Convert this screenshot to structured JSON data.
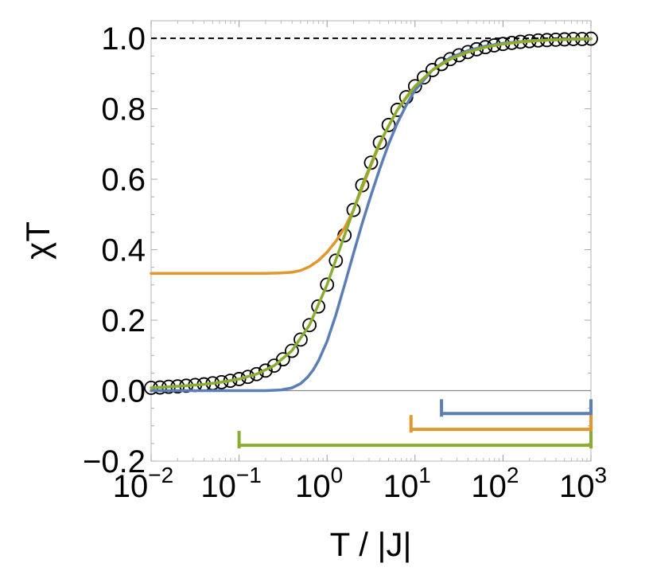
{
  "chart_data": {
    "type": "line",
    "xlabel": "T / |J|",
    "ylabel": "χT",
    "x_scale": "log",
    "xlim": [
      0.01,
      1000
    ],
    "ylim": [
      -0.2,
      1.05
    ],
    "x_tick_labels": [
      {
        "base": "10",
        "exp": "−2"
      },
      {
        "base": "10",
        "exp": "−1"
      },
      {
        "base": "10",
        "exp": "0"
      },
      {
        "base": "10",
        "exp": "1"
      },
      {
        "base": "10",
        "exp": "2"
      },
      {
        "base": "10",
        "exp": "3"
      }
    ],
    "y_tick_labels": [
      "−0.2",
      "0.0",
      "0.2",
      "0.4",
      "0.6",
      "0.8",
      "1.0"
    ],
    "reference_line": {
      "y": 1.0,
      "style": "dashed",
      "color": "#000000"
    },
    "zero_line": {
      "y": 0.0,
      "color": "#888888"
    },
    "series": [
      {
        "style": "open-circle markers",
        "color": "#000000",
        "x": [
          0.01,
          0.0126,
          0.0158,
          0.02,
          0.0251,
          0.0316,
          0.0398,
          0.0501,
          0.0631,
          0.0794,
          0.1,
          0.126,
          0.158,
          0.2,
          0.251,
          0.316,
          0.398,
          0.501,
          0.631,
          0.794,
          1.0,
          1.26,
          1.58,
          2.0,
          2.51,
          3.16,
          3.98,
          5.01,
          6.31,
          7.94,
          10.0,
          12.6,
          15.8,
          20.0,
          25.1,
          31.6,
          39.8,
          50.1,
          63.1,
          79.4,
          100.0,
          126,
          158,
          200,
          251,
          316,
          398,
          501,
          631,
          794,
          1000
        ],
        "y": [
          0.008,
          0.009,
          0.011,
          0.012,
          0.014,
          0.016,
          0.018,
          0.021,
          0.024,
          0.028,
          0.033,
          0.039,
          0.047,
          0.057,
          0.071,
          0.089,
          0.113,
          0.145,
          0.186,
          0.239,
          0.301,
          0.369,
          0.441,
          0.513,
          0.583,
          0.647,
          0.704,
          0.754,
          0.797,
          0.833,
          0.864,
          0.889,
          0.91,
          0.927,
          0.941,
          0.952,
          0.961,
          0.969,
          0.975,
          0.98,
          0.984,
          0.987,
          0.99,
          0.992,
          0.994,
          0.995,
          0.996,
          0.997,
          0.998,
          0.998,
          0.999
        ]
      },
      {
        "color": "#5b7fb5",
        "x": [
          0.01,
          0.1,
          0.2,
          0.3,
          0.4,
          0.5,
          0.6,
          0.7,
          0.8,
          1.0,
          1.26,
          1.58,
          2.0,
          2.51,
          3.16,
          3.98,
          5.01,
          6.31,
          7.94,
          10.0,
          15.8,
          25.1,
          39.8,
          63.1,
          100.0,
          200,
          398,
          1000
        ],
        "y": [
          0.0,
          0.0,
          0.0,
          0.002,
          0.008,
          0.02,
          0.038,
          0.06,
          0.085,
          0.14,
          0.215,
          0.3,
          0.39,
          0.475,
          0.555,
          0.63,
          0.7,
          0.76,
          0.81,
          0.853,
          0.91,
          0.945,
          0.965,
          0.978,
          0.986,
          0.993,
          0.996,
          0.998
        ]
      },
      {
        "color": "#e3962c",
        "x": [
          0.01,
          0.1,
          0.2,
          0.3,
          0.4,
          0.5,
          0.631,
          0.794,
          1.0,
          1.26,
          1.58,
          2.0,
          2.51,
          3.16,
          3.98,
          5.01,
          6.31,
          7.94,
          10.0,
          15.8,
          25.1,
          39.8,
          63.1,
          100.0,
          200,
          398,
          1000
        ],
        "y": [
          0.333,
          0.333,
          0.333,
          0.334,
          0.336,
          0.341,
          0.352,
          0.369,
          0.393,
          0.424,
          0.462,
          0.513,
          0.576,
          0.64,
          0.7,
          0.752,
          0.797,
          0.833,
          0.864,
          0.91,
          0.941,
          0.961,
          0.975,
          0.984,
          0.992,
          0.996,
          0.999
        ]
      },
      {
        "color": "#8aad2f",
        "x": [
          0.01,
          0.0158,
          0.0251,
          0.0398,
          0.0631,
          0.1,
          0.158,
          0.251,
          0.398,
          0.631,
          1.0,
          1.58,
          2.51,
          3.98,
          6.31,
          10.0,
          15.8,
          25.1,
          39.8,
          63.1,
          100.0,
          158,
          251,
          398,
          631,
          1000
        ],
        "y": [
          0.008,
          0.011,
          0.014,
          0.018,
          0.024,
          0.033,
          0.047,
          0.071,
          0.113,
          0.186,
          0.301,
          0.441,
          0.583,
          0.704,
          0.797,
          0.864,
          0.91,
          0.941,
          0.961,
          0.975,
          0.984,
          0.99,
          0.994,
          0.996,
          0.998,
          0.999
        ]
      }
    ],
    "ranges": [
      {
        "color": "#5b7fb5",
        "x_start": 20,
        "x_end": 1000,
        "y": -0.065
      },
      {
        "color": "#e3962c",
        "x_start": 9,
        "x_end": 1000,
        "y": -0.11
      },
      {
        "color": "#8aad2f",
        "x_start": 0.1,
        "x_end": 1000,
        "y": -0.155
      }
    ]
  }
}
